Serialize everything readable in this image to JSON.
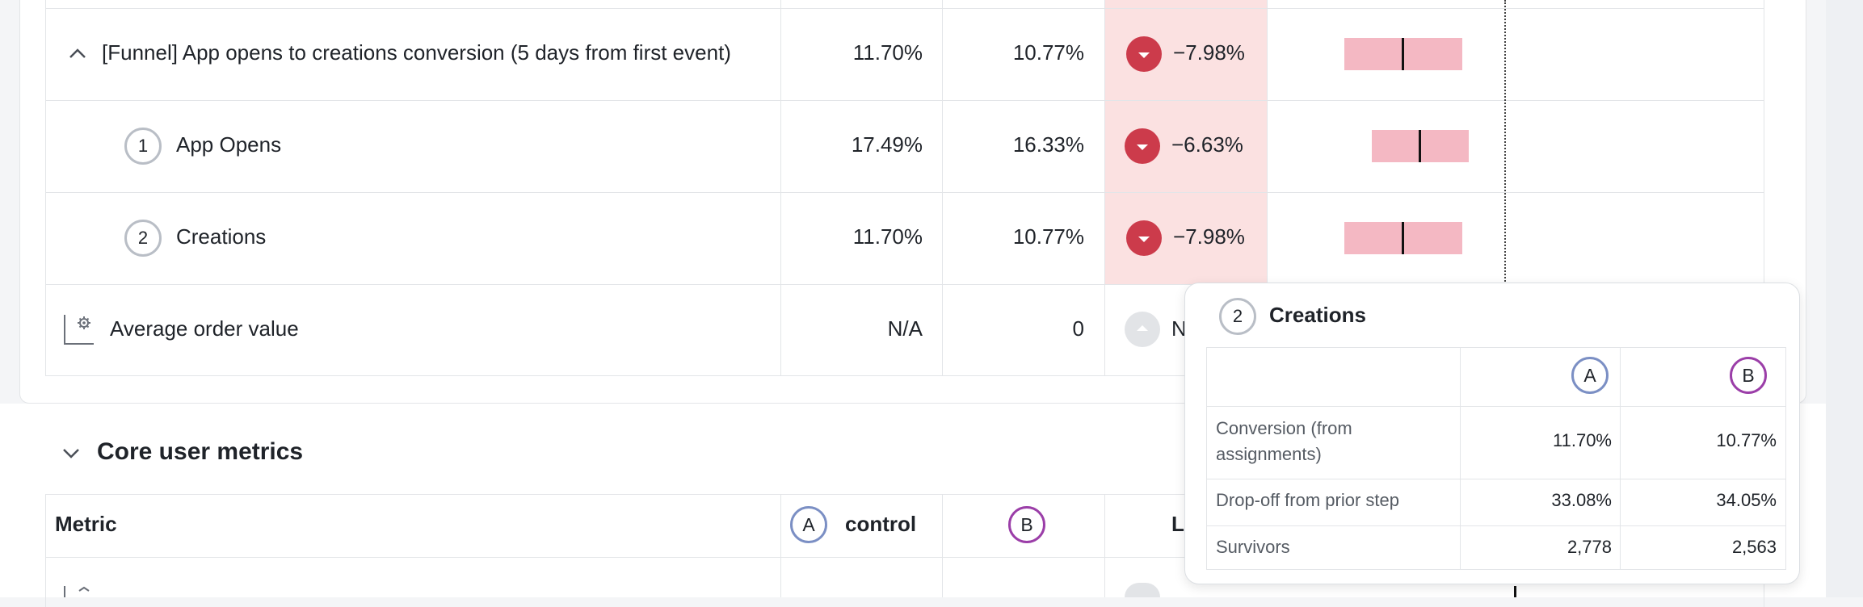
{
  "funnel_table": {
    "rows": [
      {
        "label": "[Funnel] App opens to creations conversion (5 days from first event)",
        "control": "11.70%",
        "variant": "10.77%",
        "lift": "−7.98%"
      },
      {
        "step": "1",
        "label": "App Opens",
        "control": "17.49%",
        "variant": "16.33%",
        "lift": "−6.63%"
      },
      {
        "step": "2",
        "label": "Creations",
        "control": "11.70%",
        "variant": "10.77%",
        "lift": "−7.98%"
      },
      {
        "label": "Average order value",
        "control": "N/A",
        "variant": "0",
        "lift": "N"
      }
    ]
  },
  "core_section": {
    "title": "Core user metrics",
    "header": {
      "metric": "Metric",
      "variant_a_letter": "A",
      "variant_a_name": "control",
      "variant_b_letter": "B",
      "lift_partial": "Li"
    }
  },
  "tooltip": {
    "step": "2",
    "title": "Creations",
    "col_a": "A",
    "col_b": "B",
    "rows": [
      {
        "label": "Conversion (from assignments)",
        "a": "11.70%",
        "b": "10.77%"
      },
      {
        "label": "Drop-off from prior step",
        "a": "33.08%",
        "b": "34.05%"
      },
      {
        "label": "Survivors",
        "a": "2,778",
        "b": "2,563"
      }
    ]
  },
  "colors": {
    "negative": "#cc3b4b",
    "negative_band": "#fbe1e1",
    "ci_bar": "#f4b8c3",
    "variant_a": "#7b8fc4",
    "variant_b": "#9b3ea8"
  },
  "icons": {
    "collapse": "chevron-up-icon",
    "expand": "chevron-down-icon",
    "metric_settings": "gear-icon",
    "lift_negative": "caret-down-icon",
    "lift_neutral": "caret-up-icon"
  }
}
